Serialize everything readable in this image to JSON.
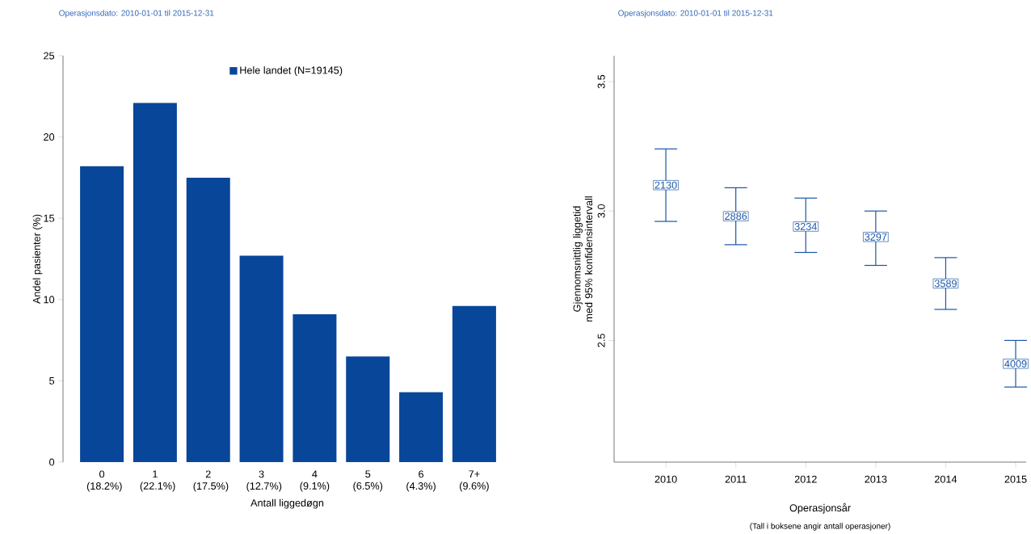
{
  "chart_data": [
    {
      "type": "bar",
      "title": "Operasjonsdato: 2010-01-01 til 2015-12-31",
      "xlabel": "Antall liggedøgn",
      "ylabel": "Andel pasienter (%)",
      "categories": [
        "0 (18.2%)",
        "1 (22.1%)",
        "2 (17.5%)",
        "3 (12.7%)",
        "4 (9.1%)",
        "5 (6.5%)",
        "6 (4.3%)",
        "7+ (9.6%)"
      ],
      "series": [
        {
          "name": "Hele landet (N=19145)",
          "color": "#08469a",
          "values": [
            18.2,
            22.1,
            17.5,
            12.7,
            9.1,
            6.5,
            4.3,
            9.6
          ]
        }
      ],
      "ylim": [
        0,
        25
      ],
      "yticks": [
        0,
        5,
        10,
        15,
        20,
        25
      ],
      "legend": "top"
    },
    {
      "type": "scatter",
      "title": "Operasjonsdato: 2010-01-01 til 2015-12-31",
      "xlabel": "Operasjonsår",
      "ylabel": "Gjennomsnittlig liggetid med 95% konfidensintervall",
      "annotations": [
        "(Tall i boksene angir antall operasjoner)",
        {
          "text": "2130",
          "x": "2010"
        },
        {
          "text": "2886",
          "x": "2011"
        },
        {
          "text": "3234",
          "x": "2012"
        },
        {
          "text": "3297",
          "x": "2013"
        },
        {
          "text": "3589",
          "x": "2014"
        },
        {
          "text": "4009",
          "x": "2015"
        }
      ],
      "categories": [
        "2010",
        "2011",
        "2012",
        "2013",
        "2014",
        "2015"
      ],
      "color": "#1b56a6",
      "values": [
        3.1,
        2.98,
        2.94,
        2.9,
        2.72,
        2.41
      ],
      "errors": [
        [
          2.96,
          3.24
        ],
        [
          2.87,
          3.09
        ],
        [
          2.84,
          3.05
        ],
        [
          2.79,
          3.0
        ],
        [
          2.62,
          2.82
        ],
        [
          2.32,
          2.5
        ]
      ],
      "ylim": [
        2.03,
        3.6
      ],
      "yticks": [
        {
          "value": 2.5,
          "label": "2.5"
        },
        {
          "value": 3,
          "label": "3.0"
        },
        {
          "value": 3.5,
          "label": "3.5"
        }
      ]
    }
  ]
}
